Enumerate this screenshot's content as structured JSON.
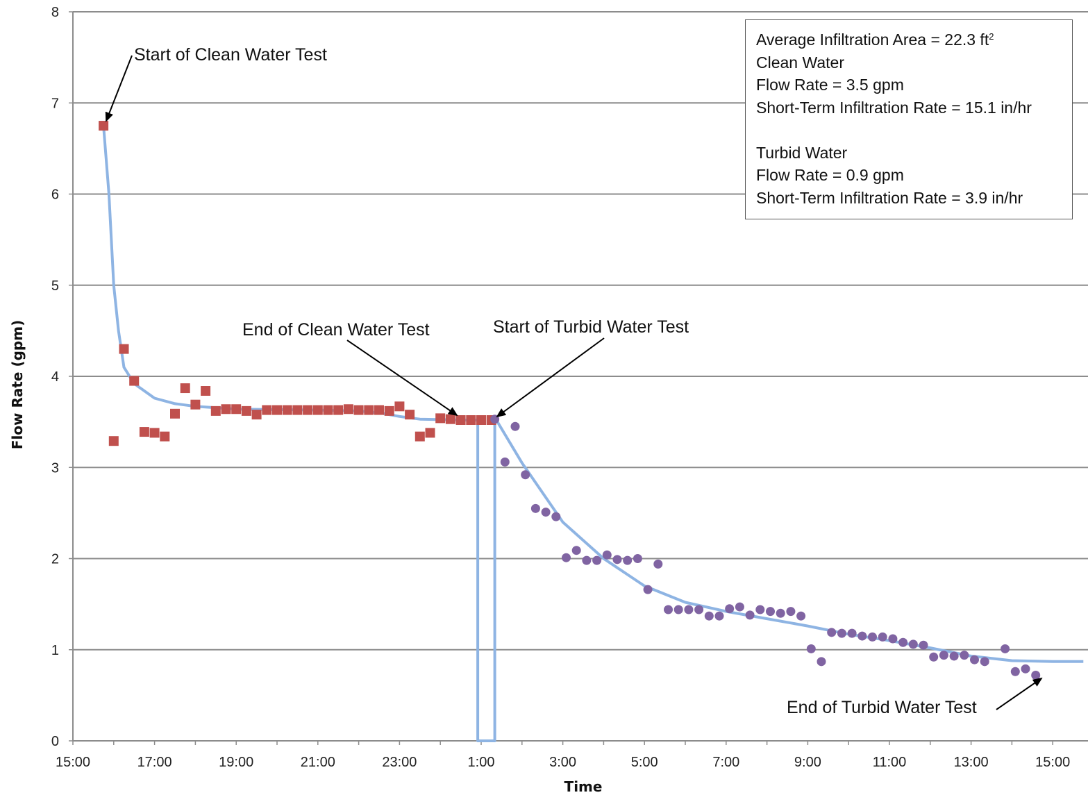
{
  "chart_data": {
    "type": "scatter",
    "xlabel": "Time",
    "ylabel": "Flow Rate (gpm)",
    "ylim": [
      0,
      8
    ],
    "xlim": [
      "15:00",
      "15:50 (next day)"
    ],
    "grid": "horizontal",
    "y_ticks": [
      "0",
      "1",
      "2",
      "3",
      "4",
      "5",
      "6",
      "7",
      "8"
    ],
    "x_ticks": [
      "15:00",
      "17:00",
      "19:00",
      "21:00",
      "23:00",
      "1:00",
      "3:00",
      "5:00",
      "7:00",
      "9:00",
      "11:00",
      "13:00",
      "15:00"
    ],
    "series": [
      {
        "marker": "square",
        "color": "#c0504d",
        "points": [
          [
            "15:45",
            6.75
          ],
          [
            "16:00",
            3.29
          ],
          [
            "16:15",
            4.3
          ],
          [
            "16:30",
            3.95
          ],
          [
            "16:45",
            3.39
          ],
          [
            "17:00",
            3.38
          ],
          [
            "17:15",
            3.34
          ],
          [
            "17:30",
            3.59
          ],
          [
            "17:45",
            3.87
          ],
          [
            "18:00",
            3.69
          ],
          [
            "18:15",
            3.84
          ],
          [
            "18:30",
            3.62
          ],
          [
            "18:45",
            3.64
          ],
          [
            "19:00",
            3.64
          ],
          [
            "19:15",
            3.62
          ],
          [
            "19:30",
            3.58
          ],
          [
            "19:45",
            3.63
          ],
          [
            "20:00",
            3.63
          ],
          [
            "20:15",
            3.63
          ],
          [
            "20:30",
            3.63
          ],
          [
            "20:45",
            3.63
          ],
          [
            "21:00",
            3.63
          ],
          [
            "21:15",
            3.63
          ],
          [
            "21:30",
            3.63
          ],
          [
            "21:45",
            3.64
          ],
          [
            "22:00",
            3.63
          ],
          [
            "22:15",
            3.63
          ],
          [
            "22:30",
            3.63
          ],
          [
            "22:45",
            3.62
          ],
          [
            "23:00",
            3.67
          ],
          [
            "23:15",
            3.58
          ],
          [
            "23:30",
            3.34
          ],
          [
            "23:45",
            3.38
          ],
          [
            "0:00",
            3.54
          ],
          [
            "0:15",
            3.53
          ],
          [
            "0:30",
            3.52
          ],
          [
            "0:45",
            3.52
          ],
          [
            "1:00",
            3.52
          ],
          [
            "1:15",
            3.52
          ]
        ]
      },
      {
        "marker": "circle",
        "color": "#8064a2",
        "points": [
          [
            "1:20",
            3.53
          ],
          [
            "1:35",
            3.06
          ],
          [
            "1:50",
            3.45
          ],
          [
            "2:05",
            2.92
          ],
          [
            "2:20",
            2.55
          ],
          [
            "2:35",
            2.51
          ],
          [
            "2:50",
            2.46
          ],
          [
            "3:05",
            2.01
          ],
          [
            "3:20",
            2.09
          ],
          [
            "3:35",
            1.98
          ],
          [
            "3:50",
            1.98
          ],
          [
            "4:05",
            2.04
          ],
          [
            "4:20",
            1.99
          ],
          [
            "4:35",
            1.98
          ],
          [
            "4:50",
            2.0
          ],
          [
            "5:05",
            1.66
          ],
          [
            "5:20",
            1.94
          ],
          [
            "5:35",
            1.44
          ],
          [
            "5:50",
            1.44
          ],
          [
            "6:05",
            1.44
          ],
          [
            "6:20",
            1.44
          ],
          [
            "6:35",
            1.37
          ],
          [
            "6:50",
            1.37
          ],
          [
            "7:05",
            1.45
          ],
          [
            "7:20",
            1.47
          ],
          [
            "7:35",
            1.38
          ],
          [
            "7:50",
            1.44
          ],
          [
            "8:05",
            1.42
          ],
          [
            "8:20",
            1.4
          ],
          [
            "8:35",
            1.42
          ],
          [
            "8:50",
            1.37
          ],
          [
            "9:05",
            1.01
          ],
          [
            "9:20",
            0.87
          ],
          [
            "9:35",
            1.19
          ],
          [
            "9:50",
            1.18
          ],
          [
            "10:05",
            1.18
          ],
          [
            "10:20",
            1.15
          ],
          [
            "10:35",
            1.14
          ],
          [
            "10:50",
            1.14
          ],
          [
            "11:05",
            1.12
          ],
          [
            "11:20",
            1.08
          ],
          [
            "11:35",
            1.06
          ],
          [
            "11:50",
            1.05
          ],
          [
            "12:05",
            0.92
          ],
          [
            "12:20",
            0.94
          ],
          [
            "12:35",
            0.93
          ],
          [
            "12:50",
            0.94
          ],
          [
            "13:05",
            0.89
          ],
          [
            "13:20",
            0.87
          ],
          [
            "13:50",
            1.01
          ],
          [
            "14:05",
            0.76
          ],
          [
            "14:20",
            0.79
          ],
          [
            "14:35",
            0.72
          ]
        ]
      }
    ],
    "fit_line": {
      "color": "#8eb4e3",
      "points": [
        [
          "15:45",
          6.75
        ],
        [
          "15:53",
          6.0
        ],
        [
          "16:00",
          5.0
        ],
        [
          "16:07",
          4.5
        ],
        [
          "16:15",
          4.1
        ],
        [
          "16:30",
          3.92
        ],
        [
          "17:00",
          3.76
        ],
        [
          "17:30",
          3.7
        ],
        [
          "18:00",
          3.67
        ],
        [
          "19:00",
          3.64
        ],
        [
          "21:00",
          3.63
        ],
        [
          "22:00",
          3.62
        ],
        [
          "22:30",
          3.6
        ],
        [
          "23:00",
          3.56
        ],
        [
          "23:30",
          3.53
        ],
        [
          "0:30",
          3.52
        ],
        [
          "0:55",
          3.52
        ],
        [
          "0:55",
          0.0
        ],
        [
          "1:20",
          0.0
        ],
        [
          "1:20",
          3.55
        ],
        [
          "2:00",
          3.05
        ],
        [
          "3:00",
          2.4
        ],
        [
          "4:00",
          2.0
        ],
        [
          "5:00",
          1.7
        ],
        [
          "6:00",
          1.52
        ],
        [
          "7:00",
          1.42
        ],
        [
          "8:00",
          1.34
        ],
        [
          "9:00",
          1.26
        ],
        [
          "10:00",
          1.17
        ],
        [
          "11:00",
          1.1
        ],
        [
          "12:00",
          1.02
        ],
        [
          "13:00",
          0.93
        ],
        [
          "14:00",
          0.88
        ],
        [
          "15:00",
          0.87
        ],
        [
          "15:45",
          0.87
        ]
      ]
    }
  },
  "info_box": {
    "area_prefix": "Average Infiltration Area = 22.3 ft",
    "area_sup": "2",
    "clean_heading": "Clean Water",
    "clean_flow": "Flow Rate = 3.5 gpm",
    "clean_rate": "Short-Term Infiltration Rate = 15.1 in/hr",
    "turbid_heading": "Turbid Water",
    "turbid_flow": "Flow Rate = 0.9 gpm",
    "turbid_rate": "Short-Term Infiltration Rate = 3.9 in/hr"
  },
  "annotations": {
    "start_clean": "Start of Clean Water Test",
    "end_clean": "End of Clean Water Test",
    "start_turbid": "Start of Turbid Water Test",
    "end_turbid": "End of Turbid Water Test"
  }
}
